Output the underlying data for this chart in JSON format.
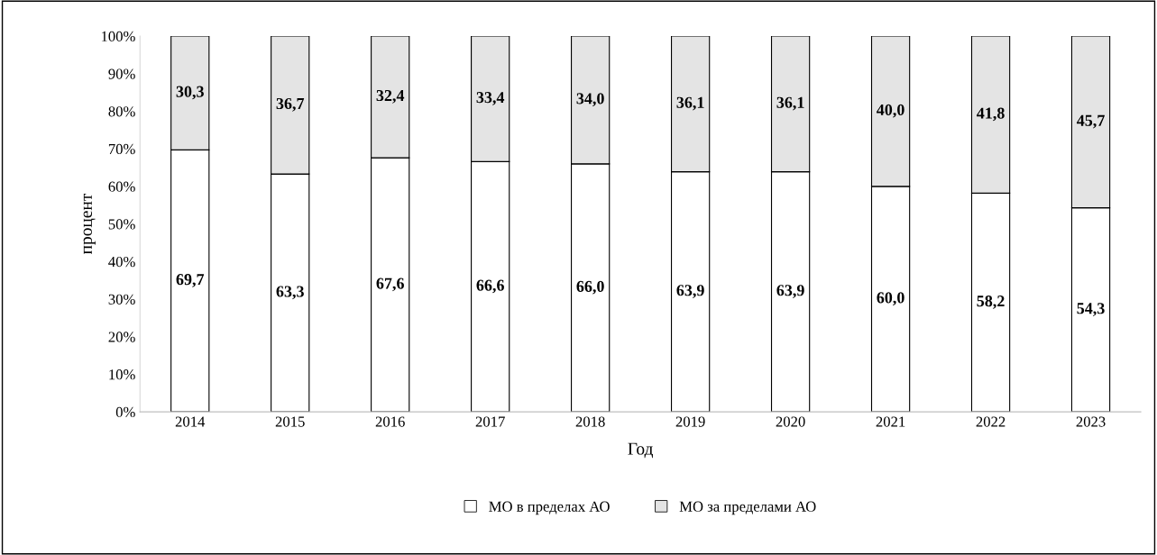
{
  "chart_data": {
    "type": "bar",
    "stacked": true,
    "xlabel": "Год",
    "ylabel": "процент",
    "categories": [
      "2014",
      "2015",
      "2016",
      "2017",
      "2018",
      "2019",
      "2020",
      "2021",
      "2022",
      "2023"
    ],
    "series": [
      {
        "name": "МО в пределах АО",
        "color": "#ffffff",
        "values": [
          69.7,
          63.3,
          67.6,
          66.6,
          66.0,
          63.9,
          63.9,
          60.0,
          58.2,
          54.3
        ],
        "value_labels": [
          "69,7",
          "63,3",
          "67,6",
          "66,6",
          "66,0",
          "63,9",
          "63,9",
          "60,0",
          "58,2",
          "54,3"
        ]
      },
      {
        "name": "МО за пределами АО",
        "color": "#e4e4e4",
        "values": [
          30.3,
          36.7,
          32.4,
          33.4,
          34.0,
          36.1,
          36.1,
          40.0,
          41.8,
          45.7
        ],
        "value_labels": [
          "30,3",
          "36,7",
          "32,4",
          "33,4",
          "34,0",
          "36,1",
          "36,1",
          "40,0",
          "41,8",
          "45,7"
        ]
      }
    ],
    "ylim": [
      0,
      100
    ],
    "yticks": [
      {
        "value": 0,
        "label": "0%"
      },
      {
        "value": 10,
        "label": "10%"
      },
      {
        "value": 20,
        "label": "20%"
      },
      {
        "value": 30,
        "label": "30%"
      },
      {
        "value": 40,
        "label": "40%"
      },
      {
        "value": 50,
        "label": "50%"
      },
      {
        "value": 60,
        "label": "60%"
      },
      {
        "value": 70,
        "label": "70%"
      },
      {
        "value": 80,
        "label": "80%"
      },
      {
        "value": 90,
        "label": "90%"
      },
      {
        "value": 100,
        "label": "100%"
      }
    ],
    "legend": "bottom",
    "grid": false
  }
}
